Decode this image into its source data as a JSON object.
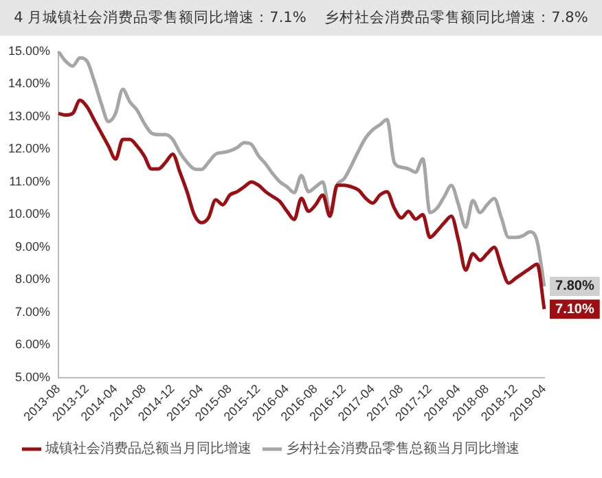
{
  "chart_data": {
    "type": "line",
    "title": "4 月城镇社会消费品零售额同比增速：7.1%    乡村社会消费品零售额同比增速：7.8%",
    "categories": [
      "2013-08",
      null,
      null,
      null,
      "2013-12",
      null,
      null,
      null,
      "2014-04",
      null,
      null,
      null,
      "2014-08",
      null,
      null,
      null,
      "2014-12",
      null,
      null,
      null,
      "2015-04",
      null,
      null,
      null,
      "2015-08",
      null,
      null,
      null,
      "2015-12",
      null,
      null,
      null,
      "2016-04",
      null,
      null,
      null,
      "2016-08",
      null,
      null,
      null,
      "2016-12",
      null,
      null,
      null,
      "2017-04",
      null,
      null,
      null,
      "2017-08",
      null,
      null,
      null,
      "2017-12",
      null,
      null,
      null,
      "2018-04",
      null,
      null,
      null,
      "2018-08",
      null,
      null,
      null,
      "2018-12",
      null,
      null,
      null,
      "2019-04"
    ],
    "series": [
      {
        "name": "城镇社会消费品总额当月同比增速",
        "color": "#9b0e12",
        "values": [
          13.1,
          13.05,
          13.1,
          13.5,
          13.3,
          12.9,
          12.5,
          12.1,
          11.7,
          12.3,
          12.3,
          12.1,
          11.8,
          11.4,
          11.4,
          11.6,
          11.85,
          11.3,
          10.7,
          10.0,
          9.75,
          9.9,
          10.45,
          10.3,
          10.6,
          10.7,
          10.85,
          11.0,
          10.9,
          10.7,
          10.55,
          10.4,
          10.1,
          9.85,
          10.5,
          10.1,
          10.3,
          10.6,
          9.95,
          10.9,
          10.9,
          10.85,
          10.75,
          10.5,
          10.35,
          10.6,
          10.7,
          10.2,
          9.9,
          10.1,
          9.86,
          10.0,
          9.3,
          9.5,
          9.75,
          9.95,
          9.2,
          8.3,
          8.8,
          8.6,
          8.8,
          9.0,
          8.4,
          7.9,
          8.05,
          8.2,
          8.35,
          8.48,
          7.1
        ],
        "value_labels": [
          null,
          null,
          null,
          null,
          null,
          null,
          null,
          null,
          null,
          null,
          null,
          null,
          null,
          null,
          null,
          null,
          null,
          null,
          null,
          null,
          null,
          null,
          null,
          null,
          null,
          null,
          null,
          null,
          null,
          null,
          null,
          null,
          null,
          null,
          null,
          null,
          null,
          null,
          null,
          null,
          null,
          null,
          null,
          null,
          null,
          null,
          null,
          null,
          null,
          null,
          null,
          null,
          null,
          null,
          null,
          null,
          null,
          null,
          null,
          null,
          null,
          null,
          null,
          null,
          null,
          null,
          null,
          null,
          "7.10%"
        ]
      },
      {
        "name": "乡村社会消费品零售总额当月同比增速",
        "color": "#a6a6a6",
        "values": [
          15.0,
          14.7,
          14.55,
          14.8,
          14.7,
          14.1,
          13.4,
          12.85,
          13.1,
          13.84,
          13.45,
          13.2,
          12.8,
          12.5,
          12.45,
          12.45,
          12.3,
          11.9,
          11.6,
          11.4,
          11.38,
          11.6,
          11.85,
          11.9,
          11.95,
          12.05,
          12.2,
          12.15,
          11.8,
          11.55,
          11.25,
          11.0,
          10.85,
          10.67,
          11.2,
          10.7,
          10.85,
          11.0,
          10.1,
          10.9,
          11.1,
          11.5,
          11.95,
          12.35,
          12.6,
          12.75,
          12.91,
          11.6,
          11.45,
          11.4,
          11.3,
          11.71,
          10.06,
          10.2,
          10.55,
          10.89,
          10.3,
          9.61,
          10.43,
          10.06,
          10.3,
          10.49,
          9.9,
          9.3,
          9.3,
          9.35,
          9.47,
          9.18,
          7.8
        ],
        "value_labels": [
          null,
          null,
          null,
          null,
          null,
          null,
          null,
          null,
          null,
          null,
          null,
          null,
          null,
          null,
          null,
          null,
          null,
          null,
          null,
          null,
          null,
          null,
          null,
          null,
          null,
          null,
          null,
          null,
          null,
          null,
          null,
          null,
          null,
          null,
          null,
          null,
          null,
          null,
          null,
          null,
          null,
          null,
          null,
          null,
          null,
          null,
          null,
          null,
          null,
          null,
          null,
          null,
          null,
          null,
          null,
          null,
          null,
          null,
          null,
          null,
          null,
          null,
          null,
          null,
          null,
          null,
          null,
          null,
          "7.80%"
        ]
      }
    ],
    "ylim": [
      5,
      15
    ],
    "yticks": [
      {
        "value": 5,
        "label": "5.00%"
      },
      {
        "value": 6,
        "label": "6.00%"
      },
      {
        "value": 7,
        "label": "7.00%"
      },
      {
        "value": 8,
        "label": "8.00%"
      },
      {
        "value": 9,
        "label": "9.00%"
      },
      {
        "value": 10,
        "label": "10.00%"
      },
      {
        "value": 11,
        "label": "11.00%"
      },
      {
        "value": 12,
        "label": "12.00%"
      },
      {
        "value": 13,
        "label": "13.00%"
      },
      {
        "value": 14,
        "label": "14.00%"
      },
      {
        "value": 15,
        "label": "15.00%"
      }
    ],
    "grid": false,
    "legend": "bottom",
    "marker": "none",
    "line_style": "solid"
  }
}
